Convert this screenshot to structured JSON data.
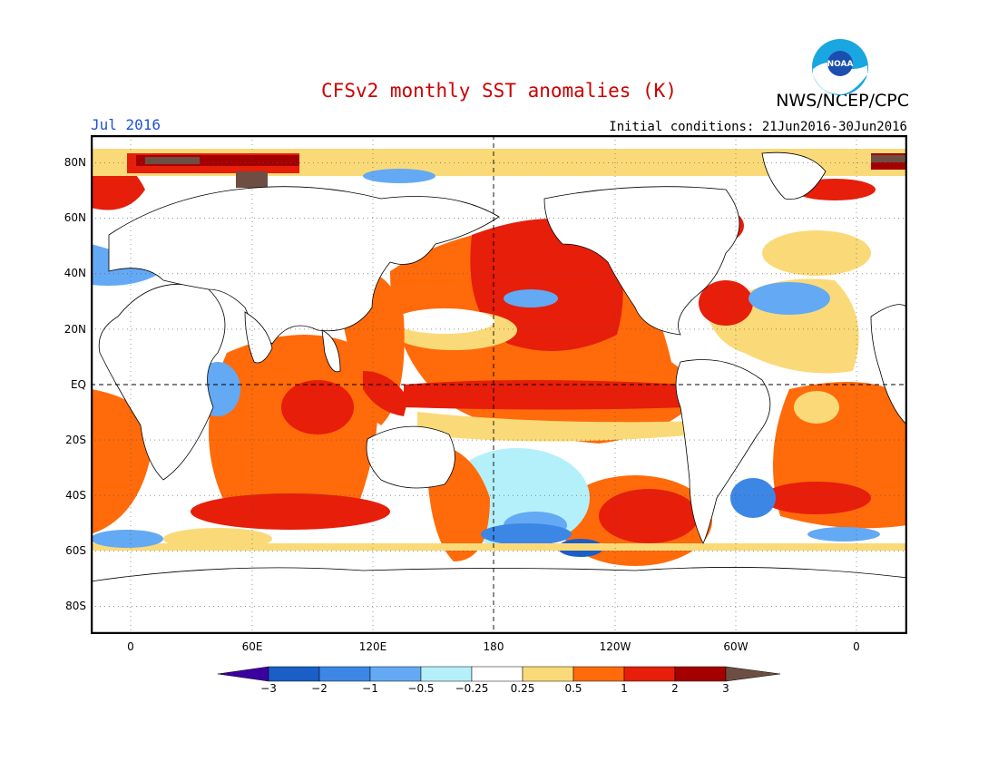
{
  "header": {
    "title": "CFSv2 monthly SST anomalies (K)",
    "valid_month": "Jul 2016",
    "initial_conditions": "Initial conditions: 21Jun2016-30Jun2016",
    "organization": "NWS/NCEP/CPC",
    "logo_text": "NOAA"
  },
  "axes": {
    "lat_labels": [
      "80N",
      "60N",
      "40N",
      "20N",
      "EQ",
      "20S",
      "40S",
      "60S",
      "80S"
    ],
    "lon_labels": [
      "0",
      "60E",
      "120E",
      "180",
      "120W",
      "60W",
      "0"
    ]
  },
  "colorbar": {
    "ticks": [
      "−3",
      "−2",
      "−1",
      "−0.5",
      "−0.25",
      "0.25",
      "0.5",
      "1",
      "2",
      "3"
    ],
    "colors": [
      "#3c00a0",
      "#1a5ec8",
      "#3c86e6",
      "#64a9f4",
      "#b4f0fa",
      "#ffffff",
      "#fada78",
      "#ff6a0a",
      "#e61e0a",
      "#a50000",
      "#6e4e42"
    ]
  }
}
